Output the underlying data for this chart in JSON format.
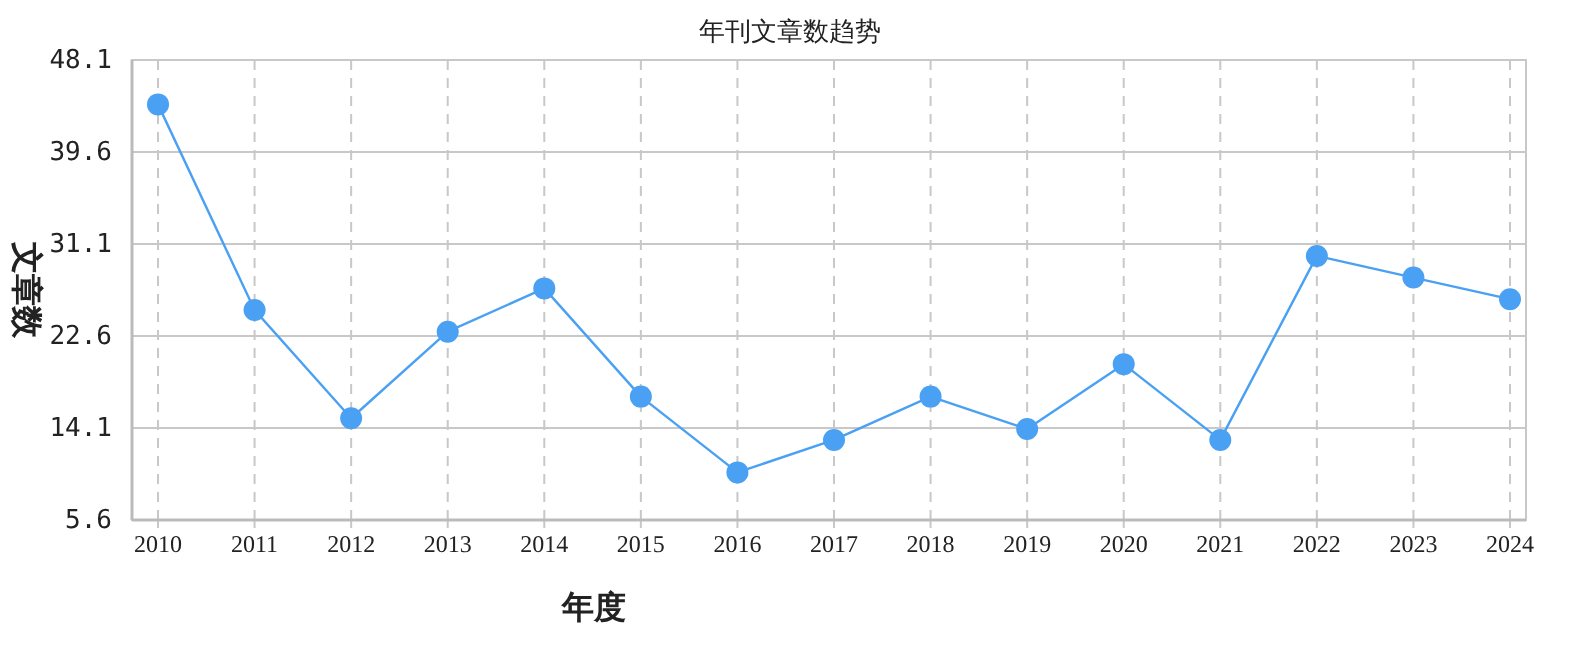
{
  "chart_data": {
    "type": "line",
    "title": "年刊文章数趋势",
    "xlabel": "年度",
    "ylabel": "文章数",
    "categories": [
      "2010",
      "2011",
      "2012",
      "2013",
      "2014",
      "2015",
      "2016",
      "2017",
      "2018",
      "2019",
      "2020",
      "2021",
      "2022",
      "2023",
      "2024"
    ],
    "values": [
      44,
      25,
      15,
      23,
      27,
      17,
      10,
      13,
      17,
      14,
      20,
      13,
      30,
      28,
      26
    ],
    "color": "#4aa0f2",
    "ylim": [
      5.6,
      48.1
    ],
    "yticks": [
      5.6,
      14.1,
      22.6,
      31.1,
      39.6,
      48.1
    ],
    "grid": true,
    "marker": "circle",
    "line_style": "solid"
  }
}
